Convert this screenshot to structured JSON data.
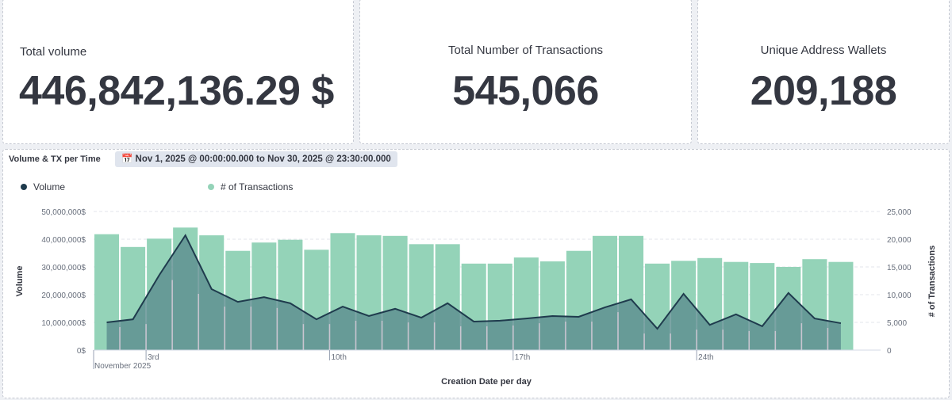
{
  "metrics": {
    "total_volume": {
      "label": "Total volume",
      "value": "446,842,136.29 $"
    },
    "total_transactions": {
      "label": "Total Number of Transactions",
      "value": "545,066"
    },
    "unique_wallets": {
      "label": "Unique Address Wallets",
      "value": "209,188"
    }
  },
  "chart_panel": {
    "title": "Volume & TX per Time",
    "time_range": "Nov 1, 2025 @ 00:00:00.000 to Nov 30, 2025 @ 23:30:00.000",
    "calendar_icon": "calendar-icon"
  },
  "chart_data": {
    "type": "bar+area",
    "xlabel": "Creation Date per day",
    "ylabel_left": "Volume",
    "ylabel_right": "# of Transactions",
    "legend": [
      {
        "name": "Volume",
        "color": "#1f3b4d"
      },
      {
        "name": "# of Transactions",
        "color": "#94d3b8"
      }
    ],
    "legend_placement": "top-left",
    "x_ticks": [
      "3rd",
      "10th",
      "17th",
      "24th"
    ],
    "x_month_label": "November 2025",
    "y_left_ticks": [
      "0$",
      "10,000,000$",
      "20,000,000$",
      "30,000,000$",
      "40,000,000$",
      "50,000,000$"
    ],
    "y_left_range": [
      0,
      50000000
    ],
    "y_right_ticks": [
      "0",
      "5,000",
      "10,000",
      "15,000",
      "20,000",
      "25,000"
    ],
    "y_right_range": [
      0,
      25000
    ],
    "days": [
      1,
      2,
      3,
      4,
      5,
      6,
      7,
      8,
      9,
      10,
      11,
      12,
      13,
      14,
      15,
      16,
      17,
      18,
      19,
      20,
      21,
      22,
      23,
      24,
      25,
      26,
      27,
      28,
      29
    ],
    "series": [
      {
        "name": "# of Transactions",
        "axis": "right",
        "type": "bar",
        "color": "#94d3b8",
        "values": [
          20900,
          18600,
          20100,
          22100,
          20700,
          17900,
          19400,
          19900,
          18100,
          21100,
          20700,
          20600,
          19100,
          19100,
          15600,
          15600,
          16700,
          16000,
          17900,
          20600,
          20600,
          15600,
          16100,
          16600,
          15900,
          15700,
          15000,
          16400,
          15900
        ]
      },
      {
        "name": "Volume",
        "axis": "left",
        "type": "area",
        "color": "#1f3b4d",
        "values": [
          10000000,
          11100000,
          27000000,
          41400000,
          22000000,
          17400000,
          19100000,
          16900000,
          11100000,
          15700000,
          12300000,
          14900000,
          11700000,
          16900000,
          10300000,
          10600000,
          11400000,
          12300000,
          12000000,
          15400000,
          18300000,
          7700000,
          20300000,
          9100000,
          12900000,
          8600000,
          20600000,
          11400000,
          9700000
        ]
      }
    ],
    "grid": "horizontal dashed"
  }
}
